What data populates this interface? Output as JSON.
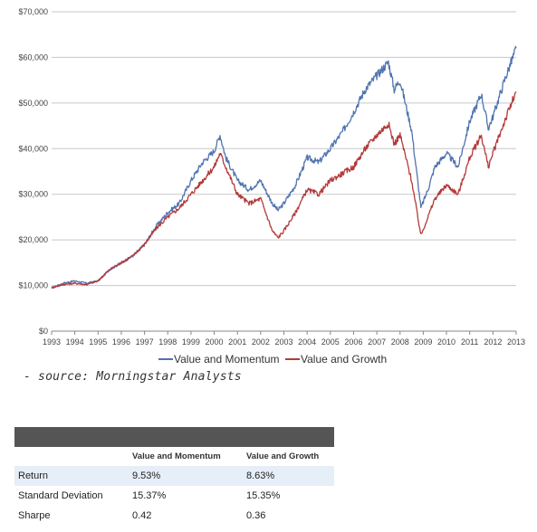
{
  "chart_data": {
    "type": "line",
    "x_tick_labels": [
      "1993",
      "1994",
      "1995",
      "1996",
      "1997",
      "1998",
      "1999",
      "2000",
      "2001",
      "2002",
      "2003",
      "2004",
      "2005",
      "2006",
      "2007",
      "2008",
      "2009",
      "2010",
      "2011",
      "2012",
      "2013"
    ],
    "y_tick_labels": [
      "$0",
      "$10,000",
      "$20,000",
      "$30,000",
      "$40,000",
      "$50,000",
      "$60,000",
      "$70,000"
    ],
    "xlim": [
      1993,
      2013
    ],
    "ylim": [
      0,
      70000
    ],
    "grid": "horizontal",
    "legend_position": "bottom",
    "series": [
      {
        "name": "Value and Momentum",
        "color": "#4f74b0",
        "x": [
          1993.0,
          1993.5,
          1994.0,
          1994.5,
          1995.0,
          1995.5,
          1996.0,
          1996.5,
          1997.0,
          1997.5,
          1998.0,
          1998.5,
          1999.0,
          1999.5,
          2000.0,
          2000.25,
          2000.5,
          2001.0,
          2001.5,
          2002.0,
          2002.5,
          2002.75,
          2003.0,
          2003.5,
          2004.0,
          2004.5,
          2005.0,
          2005.5,
          2006.0,
          2006.5,
          2007.0,
          2007.5,
          2007.75,
          2008.0,
          2008.5,
          2008.9,
          2009.2,
          2009.5,
          2010.0,
          2010.5,
          2011.0,
          2011.5,
          2011.8,
          2012.0,
          2012.5,
          2013.0
        ],
        "values": [
          9500,
          10500,
          11000,
          10500,
          11000,
          13500,
          15000,
          16500,
          19000,
          23000,
          26000,
          28000,
          33000,
          37000,
          39500,
          43000,
          38000,
          33000,
          31000,
          33000,
          28000,
          26500,
          28000,
          32000,
          38000,
          37000,
          40000,
          43500,
          48000,
          53000,
          56000,
          59000,
          53000,
          55000,
          44000,
          27000,
          31000,
          36000,
          39000,
          36000,
          46000,
          52000,
          44500,
          47000,
          55000,
          62000
        ]
      },
      {
        "name": "Value and Growth",
        "color": "#b33a3a",
        "x": [
          1993.0,
          1993.5,
          1994.0,
          1994.5,
          1995.0,
          1995.5,
          1996.0,
          1996.5,
          1997.0,
          1997.5,
          1998.0,
          1998.5,
          1999.0,
          1999.5,
          2000.0,
          2000.25,
          2000.5,
          2001.0,
          2001.5,
          2002.0,
          2002.5,
          2002.75,
          2003.0,
          2003.5,
          2004.0,
          2004.5,
          2005.0,
          2005.5,
          2006.0,
          2006.5,
          2007.0,
          2007.5,
          2007.75,
          2008.0,
          2008.5,
          2008.9,
          2009.2,
          2009.5,
          2010.0,
          2010.5,
          2011.0,
          2011.5,
          2011.8,
          2012.0,
          2012.5,
          2013.0
        ],
        "values": [
          9500,
          10200,
          10500,
          10200,
          11000,
          13500,
          15000,
          16500,
          19000,
          22500,
          25000,
          27000,
          30000,
          33000,
          36000,
          39000,
          36000,
          30000,
          28000,
          29000,
          22000,
          20500,
          22000,
          26000,
          31000,
          30000,
          33000,
          34500,
          36000,
          40000,
          43000,
          45500,
          41000,
          43000,
          33000,
          21000,
          25000,
          29000,
          32000,
          30000,
          38000,
          43000,
          36000,
          39000,
          46000,
          52500
        ]
      }
    ]
  },
  "source": "- source: Morningstar Analysts",
  "table": {
    "headers": [
      "",
      "Value and Momentum",
      "Value and Growth"
    ],
    "rows": [
      {
        "label": "Return",
        "vm": "9.53%",
        "vg": "8.63%"
      },
      {
        "label": "Standard Deviation",
        "vm": "15.37%",
        "vg": "15.35%"
      },
      {
        "label": "Sharpe",
        "vm": "0.42",
        "vg": "0.36"
      }
    ]
  }
}
